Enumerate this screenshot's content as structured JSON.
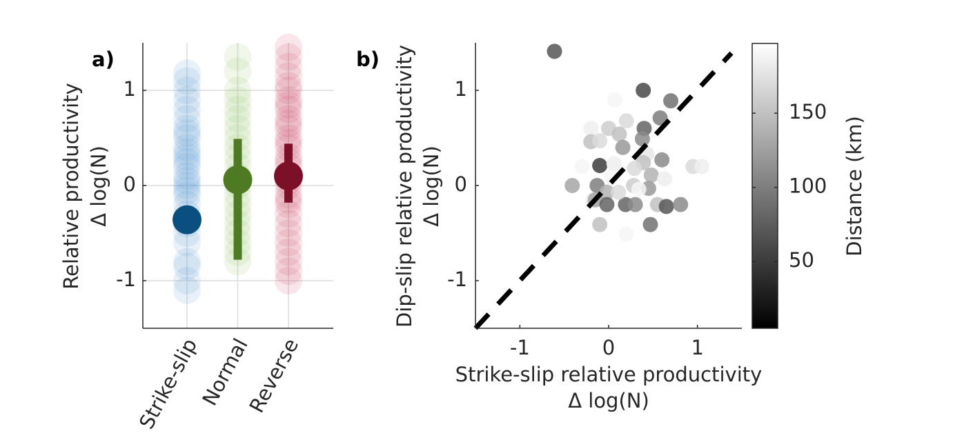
{
  "chart_data": [
    {
      "type": "strip",
      "panel_label": "a)",
      "ylabel": [
        "Relative productivity",
        "Δ log(N)"
      ],
      "categories": [
        "Strike-slip",
        "Normal",
        "Reverse"
      ],
      "point_colors": [
        "#4a90d0",
        "#8cbf5a",
        "#c8405e"
      ],
      "mean_colors": [
        "#0a4f80",
        "#4e7a23",
        "#7b1028"
      ],
      "points": [
        [
          1.18,
          1.1,
          1.0,
          0.9,
          0.8,
          0.7,
          0.6,
          0.55,
          0.5,
          0.4,
          0.35,
          0.3,
          0.25,
          0.2,
          0.1,
          0.05,
          0,
          -0.05,
          -0.1,
          -0.2,
          -0.3,
          -0.4,
          -0.5,
          -0.6,
          -0.8,
          -0.85,
          -1.0,
          -1.1
        ],
        [
          1.35,
          1.2,
          1.0,
          0.9,
          0.8,
          0.7,
          0.6,
          0.5,
          0.4,
          0.3,
          0.2,
          0.1,
          0,
          -0.1,
          -0.2,
          -0.3,
          -0.4,
          -0.5,
          -0.6,
          -0.7,
          -0.8
        ],
        [
          1.45,
          1.35,
          1.25,
          1.15,
          1.05,
          1.0,
          0.9,
          0.85,
          0.8,
          0.7,
          0.65,
          0.6,
          0.5,
          0.45,
          0.4,
          0.3,
          0.25,
          0.2,
          0.1,
          0.05,
          0,
          -0.1,
          -0.15,
          -0.2,
          -0.3,
          -0.4,
          -0.5,
          -0.6,
          -0.7,
          -0.8,
          -0.9,
          -1.0
        ]
      ],
      "means": [
        -0.36,
        0.06,
        0.1
      ],
      "lower": [
        null,
        -0.78,
        -0.18
      ],
      "upper": [
        null,
        0.49,
        0.44
      ],
      "ylim": [
        -1.5,
        1.5
      ],
      "yticks": [
        -1,
        0,
        1
      ],
      "grid": true
    },
    {
      "type": "scatter",
      "panel_label": "b)",
      "xlabel": [
        "Strike-slip relative productivity",
        "Δ log(N)"
      ],
      "ylabel": [
        "Dip-slip relative productivity",
        "Δ log(N)"
      ],
      "x": [
        -0.61,
        0.39,
        0.7,
        0.07,
        0.58,
        0.4,
        0.2,
        -0.2,
        0,
        0.12,
        0.38,
        -0.2,
        -0.1,
        0.16,
        0.43,
        0.6,
        0.39,
        -0.1,
        -0.3,
        0.06,
        0.29,
        0.95,
        1.05,
        0.03,
        0.48,
        0.63,
        -0.41,
        -0.13,
        0.28,
        0.45,
        -0.02,
        -0.17,
        -0.15,
        -0.02,
        0.19,
        0.3,
        0.55,
        0.65,
        0.81,
        0.47,
        -0.1,
        0.2,
        0.11,
        0.34
      ],
      "values": [
        1.41,
        1.0,
        0.89,
        0.9,
        0.71,
        0.6,
        0.68,
        0.6,
        0.6,
        0.54,
        0.49,
        0.46,
        0.47,
        0.4,
        0.33,
        0.27,
        0.24,
        0.21,
        0.2,
        0.23,
        0.18,
        0.2,
        0.2,
        0.09,
        0.11,
        0.07,
        0,
        0,
        0,
        -0.03,
        -0.07,
        -0.15,
        -0.15,
        -0.2,
        -0.2,
        -0.2,
        -0.2,
        -0.22,
        -0.2,
        -0.41,
        -0.41,
        -0.51,
        -0.07,
        -0.04
      ],
      "color_values": [
        70,
        60,
        90,
        190,
        100,
        80,
        170,
        185,
        160,
        150,
        110,
        150,
        170,
        120,
        180,
        110,
        150,
        50,
        190,
        185,
        170,
        170,
        185,
        190,
        140,
        185,
        130,
        100,
        160,
        120,
        140,
        180,
        130,
        80,
        80,
        110,
        150,
        70,
        110,
        90,
        150,
        190,
        170,
        190
      ],
      "colormap": "gray",
      "xlim": [
        -1.5,
        1.5
      ],
      "xticks": [
        -1,
        0,
        1
      ],
      "ylim": [
        -1.5,
        1.5
      ],
      "yticks": [
        -1,
        0,
        1
      ],
      "clim": [
        5,
        197
      ],
      "cticks": [
        50,
        100,
        150
      ],
      "clabel": "Distance (km)",
      "diagonal": true,
      "grid": false
    }
  ]
}
